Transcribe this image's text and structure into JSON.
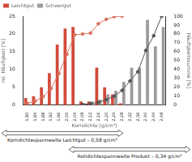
{
  "chart_data": {
    "type": "bar",
    "x_label": "Korndichte [g/cm³]",
    "y_label": "rel. Häufigkeit [%]",
    "y2_label": "Häufigkeitssumme [%]",
    "categories": [
      "1,80",
      "1,84",
      "1,88",
      "1,92",
      "1,96",
      "2,00",
      "2,04",
      "2,08",
      "2,12",
      "2,16",
      "2,20",
      "2,24",
      "2,28",
      "2,32",
      "2,36",
      "2,40",
      "2,44",
      "2,48"
    ],
    "series": [
      {
        "name": "Leichtgut",
        "type": "bar",
        "color": "#d24a3a",
        "values": [
          2,
          2.5,
          5,
          9,
          17,
          21.5,
          22,
          1,
          1,
          10.5,
          5,
          3,
          0.5,
          0,
          0,
          0,
          0,
          0
        ]
      },
      {
        "name": "Schwergut",
        "type": "bar",
        "color": "#9b9b9b",
        "values": [
          0,
          0,
          0,
          0,
          0,
          0,
          0,
          0.5,
          1,
          1.5,
          3,
          4,
          6.5,
          10.5,
          10.5,
          24,
          16.5,
          22
        ]
      },
      {
        "type": "line",
        "axis": "y2",
        "color": "#d9735f",
        "marker": "circle",
        "values": [
          2,
          4.5,
          9.5,
          18.5,
          35.5,
          57,
          79,
          80,
          81,
          91.5,
          96.5,
          99.5,
          100,
          null,
          null,
          null,
          null,
          null
        ]
      },
      {
        "type": "line",
        "axis": "y2",
        "color": "#555555",
        "marker": "circle",
        "values": [
          null,
          null,
          null,
          null,
          null,
          null,
          null,
          0.5,
          1.5,
          3,
          6,
          10,
          16.5,
          27,
          37.5,
          61.5,
          78,
          100
        ]
      }
    ],
    "ylim": [
      0,
      25
    ],
    "yticks": [
      0,
      5,
      10,
      15,
      20,
      25
    ],
    "y2lim": [
      0,
      100
    ],
    "y2ticks": [
      0,
      10,
      20,
      30,
      40,
      50,
      60,
      70,
      80,
      90,
      100
    ],
    "legend": "top left",
    "grid": false,
    "annotations": [
      {
        "text": "Korndichtespannweite Leichtgut – 0,58 g/cm³"
      },
      {
        "text": "Rohdichtespannweite Produkt – 0,34 g/cm³"
      }
    ]
  }
}
